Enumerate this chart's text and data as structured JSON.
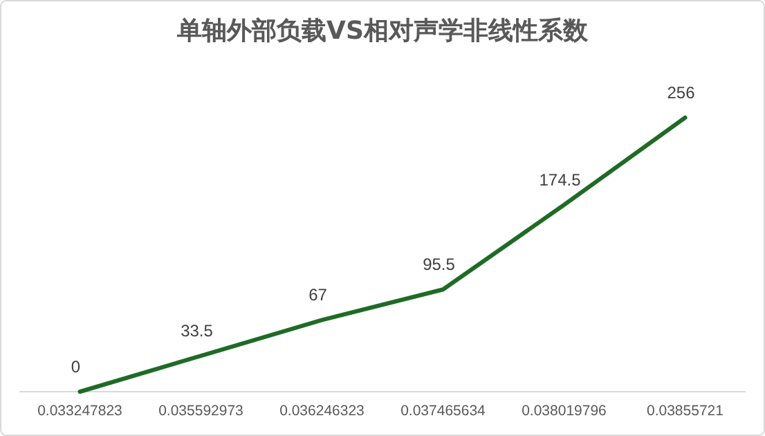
{
  "chart_data": {
    "type": "line",
    "title": "单轴外部负载VS相对声学非线性系数",
    "categories": [
      "0.033247823",
      "0.035592973",
      "0.036246323",
      "0.037465634",
      "0.038019796",
      "0.03855721"
    ],
    "series": [
      {
        "color": "#1f6b26",
        "values": [
          0,
          33.5,
          67,
          95.5,
          174.5,
          256
        ]
      }
    ],
    "data_labels": true,
    "marker": "none",
    "line_style": "solid"
  }
}
